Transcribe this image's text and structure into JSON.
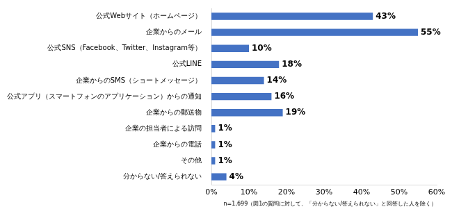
{
  "chart_data": {
    "type": "bar",
    "orientation": "horizontal",
    "categories": [
      "公式Webサイト（ホームページ）",
      "企業からのメール",
      "公式SNS（Facebook、Twitter、Instagram等）",
      "公式LINE",
      "企業からのSMS（ショートメッセージ）",
      "公式アプリ（スマートフォンのアプリケーション）からの通知",
      "企業からの郵送物",
      "企業の担当者による訪問",
      "企業からの電話",
      "その他",
      "分からない/答えられない"
    ],
    "values": [
      43,
      55,
      10,
      18,
      14,
      16,
      19,
      1,
      1,
      1,
      4
    ],
    "value_labels": [
      "43%",
      "55%",
      "10%",
      "18%",
      "14%",
      "16%",
      "19%",
      "1%",
      "1%",
      "1%",
      "4%"
    ],
    "data_labels": true,
    "color": "#4472c4",
    "xlim": [
      0,
      60
    ],
    "xticks": [
      {
        "value": 0,
        "label": "0%"
      },
      {
        "value": 10,
        "label": "10%"
      },
      {
        "value": 20,
        "label": "20%"
      },
      {
        "value": 30,
        "label": "30%"
      },
      {
        "value": 40,
        "label": "40%"
      },
      {
        "value": 50,
        "label": "50%"
      },
      {
        "value": 60,
        "label": "60%"
      }
    ],
    "annotation": "n=1,699（図1の質問に対して、「分からない/答えられない」と回答した人を除く）",
    "grid": false
  }
}
